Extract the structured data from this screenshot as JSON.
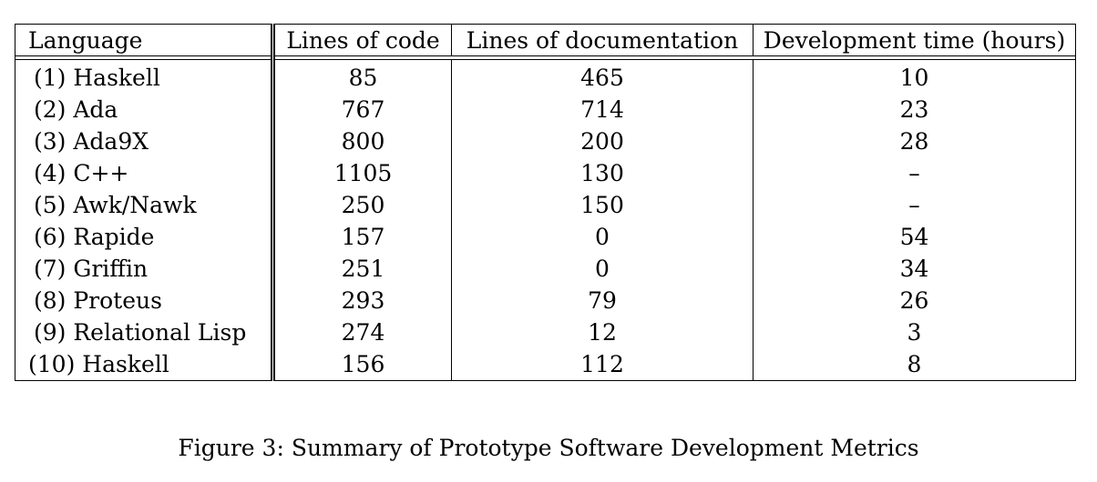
{
  "table": {
    "headers": {
      "language": "Language",
      "lines_of_code": "Lines of code",
      "lines_of_documentation": "Lines of documentation",
      "development_time": "Development time (hours)"
    },
    "rows": [
      {
        "language": "(1) Haskell",
        "loc": "85",
        "lod": "465",
        "time": "10"
      },
      {
        "language": "(2) Ada",
        "loc": "767",
        "lod": "714",
        "time": "23"
      },
      {
        "language": "(3) Ada9X",
        "loc": "800",
        "lod": "200",
        "time": "28"
      },
      {
        "language": "(4) C++",
        "loc": "1105",
        "lod": "130",
        "time": "–"
      },
      {
        "language": "(5) Awk/Nawk",
        "loc": "250",
        "lod": "150",
        "time": "–"
      },
      {
        "language": "(6) Rapide",
        "loc": "157",
        "lod": "0",
        "time": "54"
      },
      {
        "language": "(7) Griffin",
        "loc": "251",
        "lod": "0",
        "time": "34"
      },
      {
        "language": "(8) Proteus",
        "loc": "293",
        "lod": "79",
        "time": "26"
      },
      {
        "language": "(9) Relational Lisp",
        "loc": "274",
        "lod": "12",
        "time": "3"
      },
      {
        "language": "(10) Haskell",
        "loc": "156",
        "lod": "112",
        "time": "8"
      }
    ]
  },
  "caption": "Figure 3: Summary of Prototype Software Development Metrics"
}
